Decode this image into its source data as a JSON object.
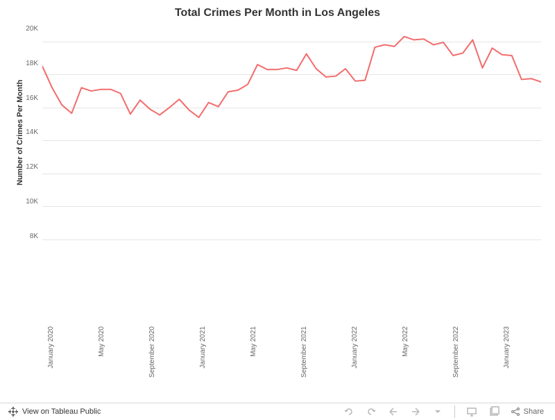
{
  "chart": {
    "type": "line",
    "title": "Total Crimes Per Month in Los Angeles",
    "title_fontsize": 16,
    "ylabel": "Number of Crimes Per Month",
    "ylabel_fontsize": 11,
    "background_color": "#ffffff",
    "grid_color": "#e5e5e5",
    "line_color": "#f26d6d",
    "line_width": 2,
    "ylim": [
      8000,
      21000
    ],
    "yticks": [
      8000,
      10000,
      12000,
      14000,
      16000,
      18000,
      20000
    ],
    "ytick_labels": [
      "8K",
      "10K",
      "12K",
      "14K",
      "16K",
      "18K",
      "20K"
    ],
    "x_labels": [
      "January 2020",
      "May 2020",
      "September 2020",
      "January 2021",
      "May 2021",
      "September 2021",
      "January 2022",
      "May 2022",
      "September 2022",
      "January 2023"
    ],
    "x_positions": [
      0,
      10.26,
      20.51,
      30.77,
      41.03,
      51.28,
      61.54,
      71.79,
      82.05,
      92.31
    ],
    "data": [
      18500,
      17200,
      16150,
      15650,
      17200,
      17000,
      17100,
      17100,
      16850,
      15600,
      16450,
      15900,
      15550,
      16000,
      16500,
      15850,
      15400,
      16300,
      16050,
      16950,
      17050,
      17400,
      18600,
      18300,
      18300,
      18400,
      18250,
      19250,
      18350,
      17850,
      17900,
      18350,
      17600,
      17650,
      19650,
      19800,
      19700,
      20300,
      20100,
      20150,
      19800,
      19950,
      19150,
      19300,
      20100,
      18400,
      19600,
      19200,
      19150,
      17700,
      17750,
      17550
    ],
    "axis_text_color": "#666666",
    "axis_fontsize": 10
  },
  "toolbar": {
    "view_label": "View on Tableau Public",
    "share_label": "Share"
  }
}
